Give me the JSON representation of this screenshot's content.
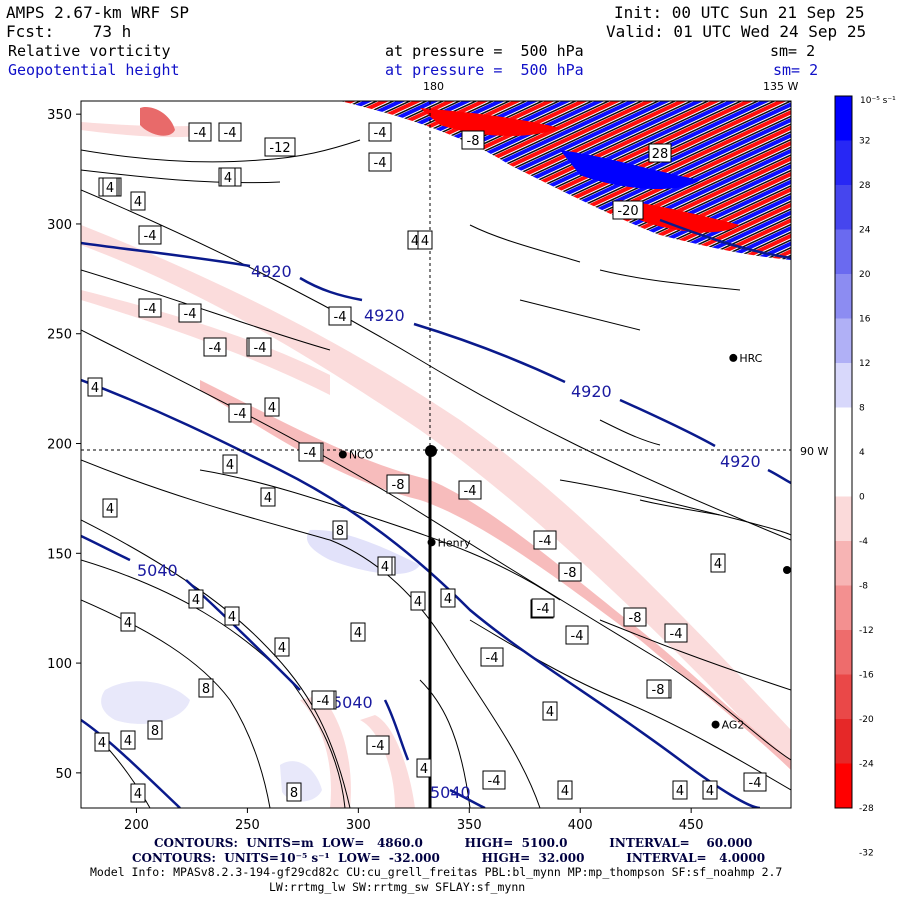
{
  "header": {
    "model": "AMPS 2.67-km WRF SP",
    "init": "Init: 00 UTC Sun 21 Sep 25",
    "fcst": "Fcst:    73 h",
    "valid": "Valid: 01 UTC Wed 24 Sep 25",
    "field1": {
      "name": "Relative vorticity",
      "level": "at pressure =  500 hPa",
      "smooth": "sm= 2"
    },
    "field2": {
      "name": "Geopotential height",
      "level": "at pressure =  500 hPa",
      "smooth": "sm= 2"
    }
  },
  "map": {
    "top_labels": [
      "180",
      "135 W"
    ],
    "right_label": "90 W",
    "x_ticks": [
      "200",
      "250",
      "300",
      "350",
      "400",
      "450"
    ],
    "y_ticks": [
      "350",
      "300",
      "250",
      "200",
      "150",
      "100",
      "50"
    ],
    "x_range": [
      175,
      495
    ],
    "y_range": [
      34,
      356
    ],
    "stations": [
      {
        "name": "HRC",
        "x": 469,
        "y": 239
      },
      {
        "name": "NCO",
        "x": 293,
        "y": 195
      },
      {
        "name": "Henry",
        "x": 333,
        "y": 155
      },
      {
        "name": "AG2",
        "x": 461,
        "y": 72
      }
    ],
    "height_contour_labels": [
      "4920",
      "4920",
      "4920",
      "4920",
      "5040",
      "5040",
      "5040"
    ],
    "vorticity_box_labels": [
      "-12",
      "-4",
      "-4",
      "-4",
      "-4",
      "-8",
      "-4",
      "4",
      "4",
      "4",
      "4",
      "-4",
      "-4",
      "-4",
      "-4",
      "-4",
      "-4",
      "4",
      "-4",
      "-4",
      "4",
      "4",
      "-8",
      "-4",
      "4",
      "-8",
      "4",
      "-4",
      "-8",
      "4",
      "4",
      "-4",
      "-4",
      "-4",
      "-8",
      "-4",
      "-4",
      "4",
      "4",
      "-8",
      "4",
      "4",
      "8",
      "-4",
      "-4",
      "8",
      "4",
      "-4",
      "4",
      "4",
      "8",
      "4",
      "4",
      "4",
      "-4",
      "4",
      "4",
      "-8",
      "4",
      "4",
      "4",
      "-4",
      "-4",
      "4",
      "-4",
      "-4",
      "8",
      "-4",
      "4",
      "4",
      "4",
      "4",
      "-20",
      "28",
      "-8"
    ]
  },
  "colorbar": {
    "unit": "10⁻⁵ s⁻¹",
    "ticks": [
      "32",
      "28",
      "24",
      "20",
      "16",
      "12",
      "8",
      "4",
      "0",
      "-4",
      "-8",
      "-12",
      "-16",
      "-20",
      "-24",
      "-28",
      "-32"
    ],
    "colors": [
      "#0000ff",
      "#2727f5",
      "#4646ee",
      "#6a6af0",
      "#8c8cf2",
      "#b0b0f6",
      "#d8d8fb",
      "#ffffff",
      "#ffffff",
      "#fbdada",
      "#f7b4b4",
      "#f39090",
      "#ee6c6c",
      "#ea4848",
      "#e62828",
      "#ff0000"
    ]
  },
  "footer": {
    "contour1": "CONTOURS:  UNITS=m  LOW=   4860.0          HIGH=  5100.0          INTERVAL=    60.000",
    "contour2": "CONTOURS:  UNITS=10⁻⁵ s⁻¹  LOW=  -32.000          HIGH=  32.000          INTERVAL=   4.0000",
    "model_info": "Model Info: MPASv8.2.3-194-gf29cd82c CU:cu_grell_freitas PBL:bl_mynn MP:mp_thompson SF:sf_noahmp 2.7",
    "model_info2": "LW:rrtmg_lw SW:rrtmg_sw SFLAY:sf_mynn"
  },
  "style": {
    "height_contour_color": "#0a1a8c",
    "pos_fill": "#e8e8fa",
    "neg_fill": "#fbd9d9",
    "strong_neg": "#ff0000",
    "strong_pos": "#0000ff"
  }
}
